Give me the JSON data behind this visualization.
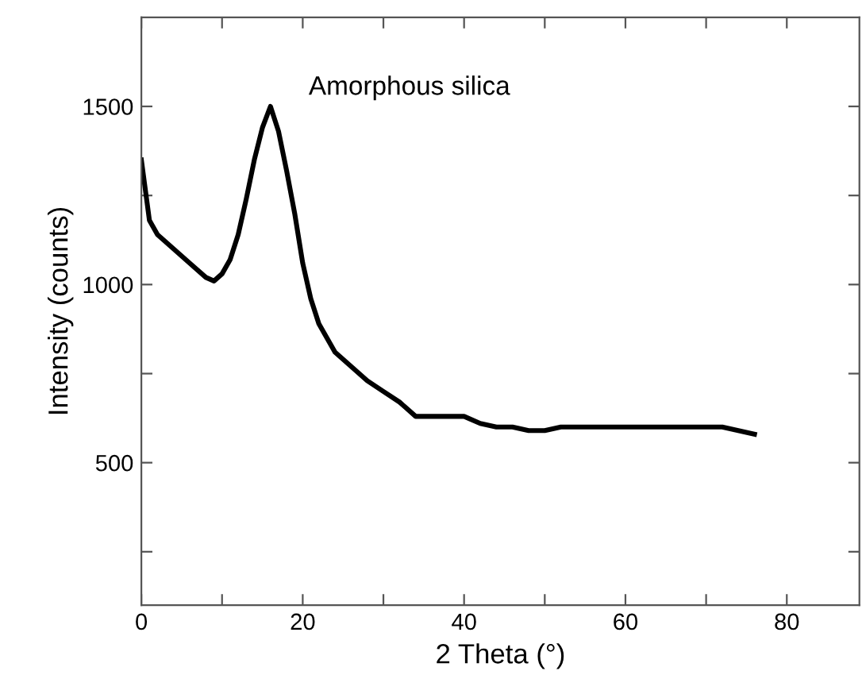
{
  "chart_data": {
    "type": "line",
    "xlabel": "2 Theta (°)",
    "ylabel": "Intensity (counts)",
    "annotations": [
      "Amorphous silica"
    ],
    "x": [
      0,
      1,
      2,
      4,
      6,
      8,
      9,
      10,
      11,
      12,
      13,
      14,
      15,
      16,
      17,
      18,
      19,
      20,
      21,
      22,
      24,
      26,
      28,
      30,
      32,
      34,
      36,
      38,
      40,
      42,
      44,
      46,
      48,
      50,
      52,
      56,
      60,
      64,
      68,
      72,
      76
    ],
    "series": [
      {
        "color": "#000000",
        "values": [
          1350,
          1180,
          1140,
          1100,
          1060,
          1020,
          1010,
          1030,
          1070,
          1140,
          1240,
          1350,
          1440,
          1500,
          1430,
          1320,
          1200,
          1060,
          960,
          890,
          810,
          770,
          730,
          700,
          670,
          630,
          630,
          630,
          630,
          610,
          600,
          600,
          590,
          590,
          600,
          600,
          600,
          600,
          600,
          600,
          580
        ]
      }
    ],
    "xlim": [
      0,
      89
    ],
    "xticks": [
      0,
      {
        "value": 10,
        "label": null
      },
      20,
      {
        "value": 30,
        "label": null
      },
      40,
      {
        "value": 50,
        "label": null
      },
      60,
      {
        "value": 70,
        "label": null
      },
      80
    ],
    "ylim": [
      100,
      1750
    ],
    "yticks": [
      {
        "value": 250,
        "label": null
      },
      500,
      {
        "value": 750,
        "label": null
      },
      1000,
      {
        "value": 1250,
        "label": null
      },
      1500
    ],
    "grid": false,
    "legend": false,
    "marker": "none",
    "line_style": "solid"
  }
}
